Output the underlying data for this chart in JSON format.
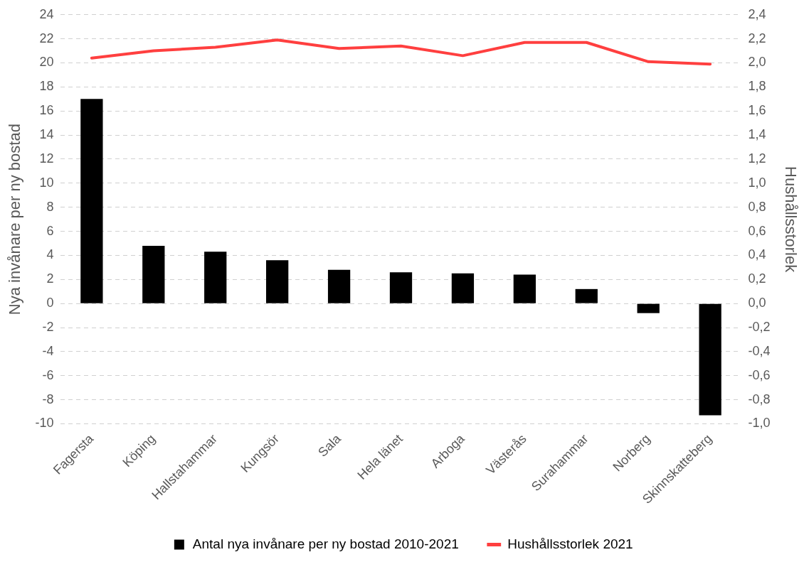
{
  "chart_data": {
    "type": "bar",
    "ylabel": "Nya invånare per ny bostad",
    "y2label": "Hushållsstorlek",
    "categories": [
      "Fagersta",
      "Köping",
      "Hallstahammar",
      "Kungsör",
      "Sala",
      "Hela länet",
      "Arboga",
      "Västerås",
      "Surahammar",
      "Norberg",
      "Skinnskatteberg"
    ],
    "series": [
      {
        "name": "Antal nya invånare per ny bostad 2010-2021",
        "color": "#000000",
        "values": [
          17.0,
          4.8,
          4.3,
          3.6,
          2.8,
          2.6,
          2.5,
          2.4,
          1.2,
          -0.8,
          -9.3
        ]
      },
      {
        "name": "Hushållsstorlek 2021",
        "type": "line",
        "axis": "y2",
        "color": "#ff3f3f",
        "values": [
          2.04,
          2.1,
          2.13,
          2.19,
          2.12,
          2.14,
          2.06,
          2.17,
          2.17,
          2.01,
          1.99
        ]
      }
    ],
    "ylim": [
      -10,
      24
    ],
    "yticks": [
      -10,
      -8,
      -6,
      -4,
      -2,
      0,
      2,
      4,
      6,
      8,
      10,
      12,
      14,
      16,
      18,
      20,
      22,
      24
    ],
    "y2lim": [
      -1.0,
      2.4
    ],
    "y2ticks": [
      {
        "value": -1.0,
        "label": "-1,0"
      },
      {
        "value": -0.8,
        "label": "-0,8"
      },
      {
        "value": -0.6,
        "label": "-0,6"
      },
      {
        "value": -0.4,
        "label": "-0,4"
      },
      {
        "value": -0.2,
        "label": "-0,2"
      },
      {
        "value": 0,
        "label": "0,0"
      },
      {
        "value": 0.2,
        "label": "0,2"
      },
      {
        "value": 0.4,
        "label": "0,4"
      },
      {
        "value": 0.6,
        "label": "0,6"
      },
      {
        "value": 0.8,
        "label": "0,8"
      },
      {
        "value": 1.0,
        "label": "1,0"
      },
      {
        "value": 1.2,
        "label": "1,2"
      },
      {
        "value": 1.4,
        "label": "1,4"
      },
      {
        "value": 1.6,
        "label": "1,6"
      },
      {
        "value": 1.8,
        "label": "1,8"
      },
      {
        "value": 2.0,
        "label": "2,0"
      },
      {
        "value": 2.2,
        "label": "2,2"
      },
      {
        "value": 2.4,
        "label": "2,4"
      }
    ],
    "grid": "y",
    "legend": "bottom",
    "marker": "none",
    "line_style": "solid"
  }
}
